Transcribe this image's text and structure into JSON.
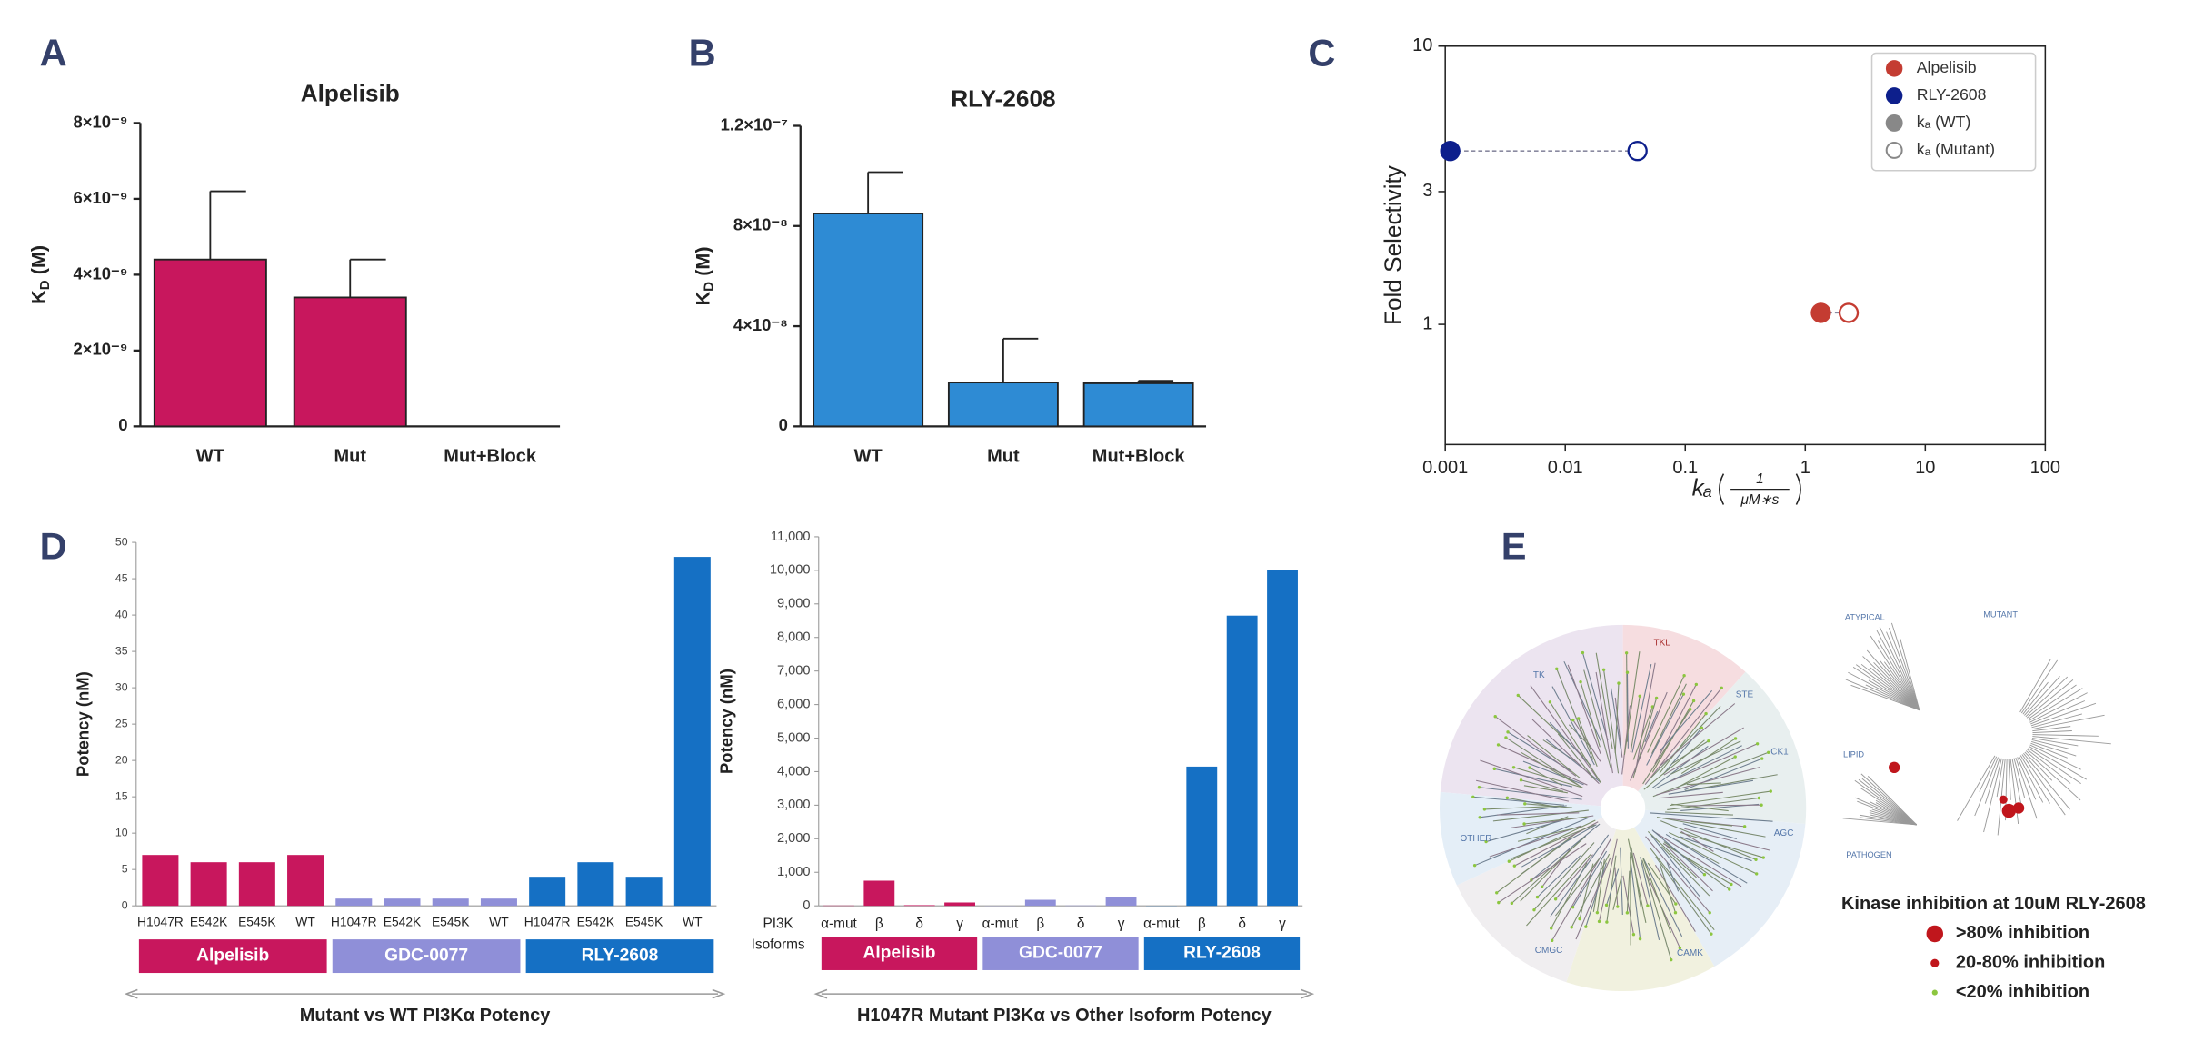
{
  "panel_labels": [
    "A",
    "B",
    "C",
    "D",
    "E"
  ],
  "chart_data": [
    {
      "type": "bar",
      "title": "Alpelisib",
      "y_label": {
        "main": "K",
        "sub": "D",
        "unit": "(M)"
      },
      "categories": [
        "WT",
        "Mut",
        "Mut+Block"
      ],
      "values": [
        4.4e-09,
        3.4e-09,
        0
      ],
      "errors": [
        1.8e-09,
        1e-09,
        null
      ],
      "color": "#c8175d",
      "ylim": [
        0,
        8e-09
      ],
      "yticks": [
        0,
        {
          "value": 2e-09,
          "label": "2×10⁻⁹"
        },
        {
          "value": 4e-09,
          "label": "4×10⁻⁹"
        },
        {
          "value": 6e-09,
          "label": "6×10⁻⁹"
        },
        {
          "value": 8e-09,
          "label": "8×10⁻⁹"
        }
      ]
    },
    {
      "type": "bar",
      "title": "RLY-2608",
      "y_label": {
        "main": "K",
        "sub": "D",
        "unit": "(M)"
      },
      "categories": [
        "WT",
        "Mut",
        "Mut+Block"
      ],
      "values": [
        8.5e-08,
        1.75e-08,
        1.72e-08
      ],
      "errors": [
        1.65e-08,
        1.75e-08,
        1e-09
      ],
      "color": "#2e8bd4",
      "ylim": [
        0,
        1.2e-07
      ],
      "yticks": [
        0,
        {
          "value": 4e-08,
          "label": "4×10⁻⁸"
        },
        {
          "value": 8e-08,
          "label": "8×10⁻⁸"
        },
        {
          "value": 1.2e-07,
          "label": "1.2×10⁻⁷"
        }
      ]
    },
    {
      "type": "scatter",
      "y_label": "Fold Selectivity",
      "x_label": {
        "symbol": "kₐ",
        "numerator": "1",
        "denominator": "μM∗s"
      },
      "log_x": true,
      "log_y": true,
      "xlim": [
        0.001,
        100
      ],
      "ylim": [
        0.37,
        10
      ],
      "xticks": [
        0.001,
        0.01,
        0.1,
        1,
        10,
        100
      ],
      "yticks": [
        1,
        3,
        10
      ],
      "legend": "upper right",
      "series": [
        {
          "name": "Alpelisib",
          "color": "#c43c32",
          "x": [
            1.35,
            2.3
          ],
          "y": [
            1.1,
            1.1
          ]
        },
        {
          "name": "RLY-2608",
          "color": "#0d1f8c",
          "x": [
            0.0011,
            0.04
          ],
          "y": [
            4.2,
            4.2
          ]
        }
      ],
      "marker_legend": [
        {
          "name": "kₐ (WT)",
          "color": "#888888",
          "filled": true
        },
        {
          "name": "kₐ (Mutant)",
          "color": "#888888",
          "filled": false
        }
      ]
    },
    {
      "type": "bar",
      "y_label": "Potency (nM)",
      "caption": "Mutant vs WT PI3Kα Potency",
      "ylim": [
        0,
        50
      ],
      "yticks": [
        0,
        5,
        10,
        15,
        20,
        25,
        30,
        35,
        40,
        45,
        50
      ],
      "groups": [
        {
          "name": "Alpelisib",
          "color": "#c8175d",
          "categories": [
            "H1047R",
            "E542K",
            "E545K",
            "WT"
          ],
          "values": [
            7,
            6,
            6,
            7
          ]
        },
        {
          "name": "GDC-0077",
          "color": "#8f8fd8",
          "categories": [
            "H1047R",
            "E542K",
            "E545K",
            "WT"
          ],
          "values": [
            1,
            1,
            1,
            1
          ]
        },
        {
          "name": "RLY-2608",
          "color": "#1570c4",
          "categories": [
            "H1047R",
            "E542K",
            "E545K",
            "WT"
          ],
          "values": [
            4,
            6,
            4,
            48
          ]
        }
      ]
    },
    {
      "type": "bar",
      "y_label": "Potency (nM)",
      "caption": "H1047R Mutant PI3Kα vs Other Isoform Potency",
      "row_label": [
        "PI3K",
        "Isoforms"
      ],
      "ylim": [
        0,
        11000
      ],
      "yticks": [
        0,
        {
          "value": 1000,
          "label": "1,000"
        },
        {
          "value": 2000,
          "label": "2,000"
        },
        {
          "value": 3000,
          "label": "3,000"
        },
        {
          "value": 4000,
          "label": "4,000"
        },
        {
          "value": 5000,
          "label": "5,000"
        },
        {
          "value": 6000,
          "label": "6,000"
        },
        {
          "value": 7000,
          "label": "7,000"
        },
        {
          "value": 8000,
          "label": "8,000"
        },
        {
          "value": 9000,
          "label": "9,000"
        },
        {
          "value": 10000,
          "label": "10,000"
        },
        {
          "value": 11000,
          "label": "11,000"
        }
      ],
      "groups": [
        {
          "name": "Alpelisib",
          "color": "#c8175d",
          "categories": [
            "α-mut",
            "β",
            "δ",
            "γ"
          ],
          "values": [
            10,
            750,
            20,
            100
          ]
        },
        {
          "name": "GDC-0077",
          "color": "#8f8fd8",
          "categories": [
            "α-mut",
            "β",
            "δ",
            "γ"
          ],
          "values": [
            5,
            180,
            10,
            260
          ]
        },
        {
          "name": "RLY-2608",
          "color": "#1570c4",
          "categories": [
            "α-mut",
            "β",
            "δ",
            "γ"
          ],
          "values": [
            5,
            4150,
            8650,
            10000
          ]
        }
      ]
    }
  ],
  "kinome": {
    "tree_labels": [
      "TK",
      "TKL",
      "STE",
      "CK1",
      "AGC",
      "CAMK",
      "CMGC",
      "OTHER"
    ],
    "subtree_labels": [
      "ATYPICAL",
      "MUTANT",
      "LIPID",
      "PATHOGEN"
    ],
    "legend_title": "Kinase inhibition at 10uM RLY-2608",
    "legend": [
      {
        "label": ">80% inhibition",
        "color": "#c0161c"
      },
      {
        "label": "20-80% inhibition",
        "color": "#c0161c"
      },
      {
        "label": "<20% inhibition",
        "color": "#8cc63f"
      }
    ]
  }
}
